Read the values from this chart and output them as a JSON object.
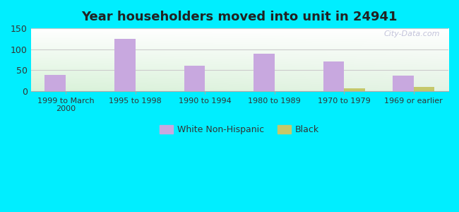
{
  "title": "Year householders moved into unit in 24941",
  "categories": [
    "1999 to March\n2000",
    "1995 to 1998",
    "1990 to 1994",
    "1980 to 1989",
    "1970 to 1979",
    "1969 or earlier"
  ],
  "white_non_hispanic": [
    38,
    124,
    60,
    90,
    71,
    36
  ],
  "black": [
    0,
    0,
    0,
    0,
    6,
    9
  ],
  "white_color": "#c8a8df",
  "black_color": "#c5c86a",
  "ylim": [
    0,
    150
  ],
  "yticks": [
    0,
    50,
    100,
    150
  ],
  "bar_width": 0.3,
  "outer_bg": "#00eeff",
  "grid_color": "#cccccc",
  "title_fontsize": 13,
  "legend_labels": [
    "White Non-Hispanic",
    "Black"
  ],
  "watermark": "City-Data.com"
}
